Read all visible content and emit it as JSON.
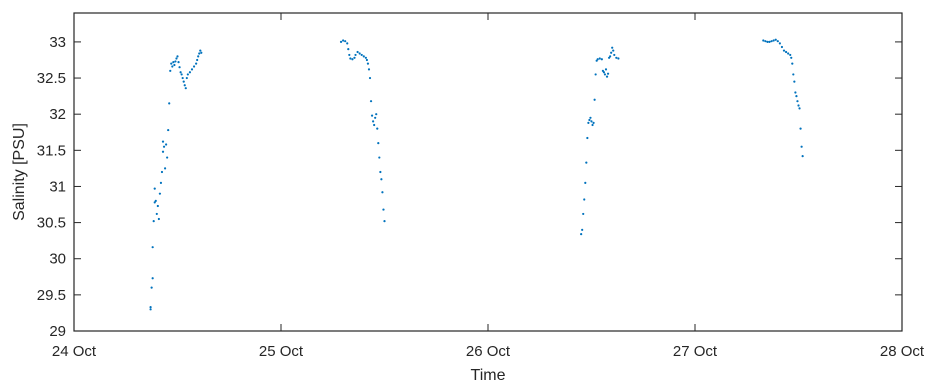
{
  "chart_data": {
    "type": "scatter",
    "title": "",
    "xlabel": "Time",
    "ylabel": "Salinity [PSU]",
    "x_unit": "days",
    "xlim": [
      0,
      4
    ],
    "ylim": [
      29,
      33.4
    ],
    "x_ticks": [
      {
        "value": 0,
        "label": "24 Oct"
      },
      {
        "value": 1,
        "label": "25 Oct"
      },
      {
        "value": 2,
        "label": "26 Oct"
      },
      {
        "value": 3,
        "label": "27 Oct"
      },
      {
        "value": 4,
        "label": "28 Oct"
      }
    ],
    "y_ticks": [
      29,
      29.5,
      30,
      30.5,
      31,
      31.5,
      32,
      32.5,
      33
    ],
    "y_tick_labels": [
      "29",
      "29.5",
      "30",
      "30.5",
      "31",
      "31.5",
      "32",
      "32.5",
      "33"
    ],
    "grid": false,
    "color": "#0072BD",
    "series": [
      {
        "name": "",
        "points": [
          [
            0.37,
            29.3
          ],
          [
            0.37,
            29.33
          ],
          [
            0.375,
            29.6
          ],
          [
            0.38,
            29.73
          ],
          [
            0.38,
            30.16
          ],
          [
            0.385,
            30.52
          ],
          [
            0.39,
            30.78
          ],
          [
            0.39,
            30.97
          ],
          [
            0.395,
            30.8
          ],
          [
            0.4,
            30.62
          ],
          [
            0.405,
            30.73
          ],
          [
            0.41,
            30.55
          ],
          [
            0.415,
            30.9
          ],
          [
            0.42,
            31.05
          ],
          [
            0.425,
            31.2
          ],
          [
            0.43,
            31.48
          ],
          [
            0.43,
            31.62
          ],
          [
            0.435,
            31.55
          ],
          [
            0.44,
            31.25
          ],
          [
            0.445,
            31.58
          ],
          [
            0.45,
            31.4
          ],
          [
            0.455,
            31.78
          ],
          [
            0.46,
            32.15
          ],
          [
            0.465,
            32.6
          ],
          [
            0.47,
            32.7
          ],
          [
            0.475,
            32.66
          ],
          [
            0.48,
            32.72
          ],
          [
            0.485,
            32.68
          ],
          [
            0.49,
            32.73
          ],
          [
            0.495,
            32.77
          ],
          [
            0.5,
            32.8
          ],
          [
            0.505,
            32.72
          ],
          [
            0.51,
            32.65
          ],
          [
            0.515,
            32.58
          ],
          [
            0.52,
            32.55
          ],
          [
            0.525,
            32.5
          ],
          [
            0.53,
            32.45
          ],
          [
            0.535,
            32.4
          ],
          [
            0.54,
            32.36
          ],
          [
            0.545,
            32.5
          ],
          [
            0.55,
            32.55
          ],
          [
            0.56,
            32.58
          ],
          [
            0.57,
            32.62
          ],
          [
            0.58,
            32.66
          ],
          [
            0.59,
            32.7
          ],
          [
            0.595,
            32.75
          ],
          [
            0.6,
            32.8
          ],
          [
            0.605,
            32.84
          ],
          [
            0.61,
            32.88
          ],
          [
            0.615,
            32.85
          ],
          [
            1.29,
            33.0
          ],
          [
            1.3,
            33.02
          ],
          [
            1.31,
            33.01
          ],
          [
            1.32,
            32.98
          ],
          [
            1.325,
            32.9
          ],
          [
            1.33,
            32.82
          ],
          [
            1.335,
            32.77
          ],
          [
            1.345,
            32.76
          ],
          [
            1.355,
            32.78
          ],
          [
            1.36,
            32.82
          ],
          [
            1.37,
            32.86
          ],
          [
            1.38,
            32.84
          ],
          [
            1.39,
            32.82
          ],
          [
            1.4,
            32.8
          ],
          [
            1.41,
            32.78
          ],
          [
            1.415,
            32.75
          ],
          [
            1.42,
            32.7
          ],
          [
            1.425,
            32.62
          ],
          [
            1.43,
            32.5
          ],
          [
            1.435,
            32.18
          ],
          [
            1.44,
            31.98
          ],
          [
            1.445,
            31.9
          ],
          [
            1.45,
            31.85
          ],
          [
            1.455,
            31.95
          ],
          [
            1.46,
            32.0
          ],
          [
            1.465,
            31.8
          ],
          [
            1.47,
            31.6
          ],
          [
            1.475,
            31.4
          ],
          [
            1.48,
            31.2
          ],
          [
            1.485,
            31.1
          ],
          [
            1.49,
            30.92
          ],
          [
            1.495,
            30.68
          ],
          [
            1.5,
            30.52
          ],
          [
            2.45,
            30.34
          ],
          [
            2.455,
            30.4
          ],
          [
            2.46,
            30.62
          ],
          [
            2.465,
            30.82
          ],
          [
            2.47,
            31.05
          ],
          [
            2.475,
            31.33
          ],
          [
            2.48,
            31.67
          ],
          [
            2.485,
            31.88
          ],
          [
            2.49,
            31.92
          ],
          [
            2.495,
            31.95
          ],
          [
            2.5,
            31.9
          ],
          [
            2.505,
            31.85
          ],
          [
            2.51,
            31.88
          ],
          [
            2.515,
            32.2
          ],
          [
            2.52,
            32.55
          ],
          [
            2.525,
            32.74
          ],
          [
            2.53,
            32.76
          ],
          [
            2.54,
            32.77
          ],
          [
            2.55,
            32.76
          ],
          [
            2.555,
            32.6
          ],
          [
            2.56,
            32.58
          ],
          [
            2.565,
            32.55
          ],
          [
            2.57,
            32.62
          ],
          [
            2.575,
            32.52
          ],
          [
            2.58,
            32.56
          ],
          [
            2.585,
            32.78
          ],
          [
            2.59,
            32.8
          ],
          [
            2.595,
            32.85
          ],
          [
            2.6,
            32.92
          ],
          [
            2.605,
            32.88
          ],
          [
            2.61,
            32.82
          ],
          [
            2.62,
            32.78
          ],
          [
            2.63,
            32.77
          ],
          [
            3.33,
            33.02
          ],
          [
            3.34,
            33.01
          ],
          [
            3.35,
            33.0
          ],
          [
            3.36,
            33.0
          ],
          [
            3.37,
            33.01
          ],
          [
            3.38,
            33.02
          ],
          [
            3.39,
            33.03
          ],
          [
            3.4,
            33.01
          ],
          [
            3.41,
            32.98
          ],
          [
            3.42,
            32.93
          ],
          [
            3.43,
            32.88
          ],
          [
            3.44,
            32.86
          ],
          [
            3.45,
            32.84
          ],
          [
            3.46,
            32.82
          ],
          [
            3.465,
            32.78
          ],
          [
            3.47,
            32.7
          ],
          [
            3.475,
            32.55
          ],
          [
            3.48,
            32.45
          ],
          [
            3.485,
            32.3
          ],
          [
            3.49,
            32.25
          ],
          [
            3.495,
            32.18
          ],
          [
            3.5,
            32.12
          ],
          [
            3.505,
            32.08
          ],
          [
            3.51,
            31.8
          ],
          [
            3.515,
            31.55
          ],
          [
            3.52,
            31.42
          ]
        ]
      }
    ]
  }
}
